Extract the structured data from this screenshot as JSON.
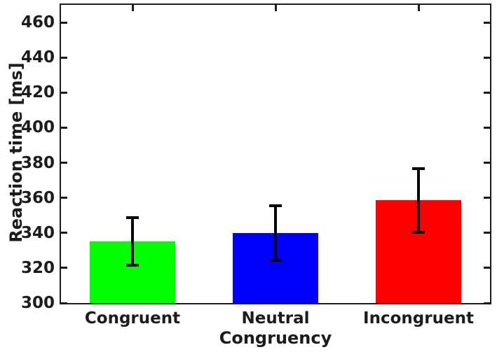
{
  "figure": {
    "background": "#ffffff",
    "axis_color": "#1c1c1c",
    "text_color": "#1c1c1c"
  },
  "chart_data": {
    "type": "bar",
    "title": "",
    "xlabel": "Congruency",
    "ylabel": "Reaction time [ms]",
    "categories": [
      "Congruent",
      "Neutral",
      "Incongruent"
    ],
    "values": [
      335,
      340,
      358.5
    ],
    "errors": [
      13.5,
      15.5,
      18
    ],
    "bar_colors": [
      "#00ff00",
      "#0000ff",
      "#ff0000"
    ],
    "error_bar_color": "#000000",
    "ylim": [
      300,
      470
    ],
    "yticks": [
      300,
      320,
      340,
      360,
      380,
      400,
      420,
      440,
      460
    ],
    "bar_width_fraction": 0.2,
    "grid": false,
    "legend": null
  }
}
